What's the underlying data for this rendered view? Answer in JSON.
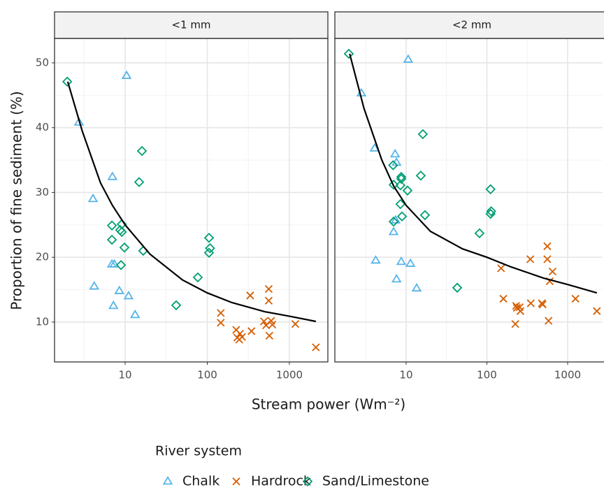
{
  "chart_data": [
    {
      "type": "scatter",
      "title": "<1 mm",
      "log_x": true,
      "grid": true,
      "x_label": "Stream power (Wm⁻²)",
      "y_label": "Proportion of fine sediment (%)",
      "legend_title": "River system",
      "xlim": [
        1.38,
        2940
      ],
      "ylim": [
        3.85,
        53.77
      ],
      "xticks": [
        10,
        100,
        1000
      ],
      "yticks": [
        10,
        20,
        30,
        40,
        50
      ],
      "minor_xticks": [
        3.162,
        31.62,
        316.2
      ],
      "minor_yticks": [
        15,
        25,
        35,
        45
      ],
      "series": [
        {
          "name": "Chalk",
          "marker": "triangle",
          "color": "#56B4E9",
          "x": [
            2.74,
            10.4,
            7.0,
            4.06,
            4.2,
            6.9,
            7.4,
            8.5,
            11.0,
            7.2,
            13.2
          ],
          "values": [
            40.8,
            48.0,
            32.4,
            29.0,
            15.5,
            18.9,
            18.9,
            14.8,
            14.0,
            12.5,
            11.1
          ]
        },
        {
          "name": "Hardrock",
          "marker": "cross",
          "color": "#D55E00",
          "x": [
            146,
            146,
            225,
            232,
            245,
            250,
            265,
            345,
            333,
            490,
            520,
            560,
            560,
            570,
            600,
            620,
            1180,
            2100
          ],
          "values": [
            11.4,
            9.9,
            8.8,
            7.6,
            7.3,
            8.2,
            7.7,
            8.6,
            14.1,
            10.1,
            9.5,
            15.1,
            13.3,
            7.9,
            10.2,
            9.6,
            9.7,
            6.1
          ]
        },
        {
          "name": "Sand/Limestone",
          "marker": "diamond",
          "color": "#009E73",
          "x": [
            1.97,
            16.0,
            14.8,
            6.9,
            9.1,
            8.7,
            9.1,
            9.8,
            16.6,
            6.9,
            8.9,
            41.8,
            76.7,
            105,
            108,
            105
          ],
          "values": [
            47.1,
            36.4,
            31.6,
            24.9,
            25.1,
            24.2,
            23.9,
            21.5,
            21.0,
            22.7,
            18.8,
            12.6,
            16.9,
            23.0,
            21.4,
            20.7
          ]
        }
      ],
      "fit": {
        "color": "#000000",
        "x": [
          2,
          3,
          5,
          7,
          10,
          20,
          50,
          100,
          200,
          500,
          1000,
          2100
        ],
        "values": [
          47.1,
          39.5,
          31.5,
          28,
          25,
          20.5,
          16.5,
          14.5,
          13,
          11.6,
          10.9,
          10.1
        ]
      }
    },
    {
      "type": "scatter",
      "title": "<2 mm",
      "log_x": true,
      "grid": true,
      "xlim": [
        1.31,
        2710
      ],
      "ylim": [
        3.85,
        53.77
      ],
      "xticks": [
        10,
        100,
        1000
      ],
      "yticks": [
        10,
        20,
        30,
        40,
        50
      ],
      "minor_xticks": [
        3.162,
        31.62,
        316.2
      ],
      "minor_yticks": [
        15,
        25,
        35,
        45
      ],
      "series": [
        {
          "marker": "triangle",
          "color": "#56B4E9",
          "x": [
            2.79,
            10.6,
            4.07,
            7.3,
            7.6,
            7.0,
            7.4,
            4.2,
            8.7,
            11.3,
            7.6,
            13.5
          ],
          "values": [
            45.3,
            50.5,
            36.8,
            35.9,
            34.6,
            23.9,
            25.7,
            19.5,
            19.3,
            19.0,
            16.6,
            15.2
          ]
        },
        {
          "marker": "cross",
          "color": "#D55E00",
          "x": [
            150,
            160,
            230,
            235,
            225,
            255,
            260,
            345,
            350,
            480,
            490,
            560,
            560,
            580,
            600,
            650,
            1250,
            2300
          ],
          "values": [
            18.3,
            13.6,
            12.5,
            12.2,
            9.7,
            12.3,
            11.7,
            19.7,
            12.9,
            12.9,
            12.7,
            21.7,
            19.7,
            10.2,
            16.3,
            17.8,
            13.6,
            11.7
          ]
        },
        {
          "marker": "diamond",
          "color": "#009E73",
          "x": [
            1.95,
            16.1,
            6.9,
            8.7,
            8.7,
            8.5,
            7.0,
            10.4,
            8.5,
            8.9,
            7.0,
            17.1,
            15.2,
            81,
            111,
            113,
            111,
            42.9
          ],
          "values": [
            51.4,
            39.0,
            34.2,
            32.4,
            32.1,
            31.1,
            31.2,
            30.3,
            28.2,
            26.3,
            25.5,
            26.5,
            32.6,
            23.7,
            30.5,
            27.1,
            26.7,
            15.3
          ]
        }
      ],
      "fit": {
        "color": "#000000",
        "x": [
          2,
          3,
          5,
          7,
          10,
          20,
          50,
          100,
          200,
          500,
          1000,
          2300
        ],
        "values": [
          51.4,
          43,
          35,
          31,
          28,
          24,
          21.3,
          20,
          18.5,
          16.8,
          15.8,
          14.5
        ]
      }
    }
  ]
}
